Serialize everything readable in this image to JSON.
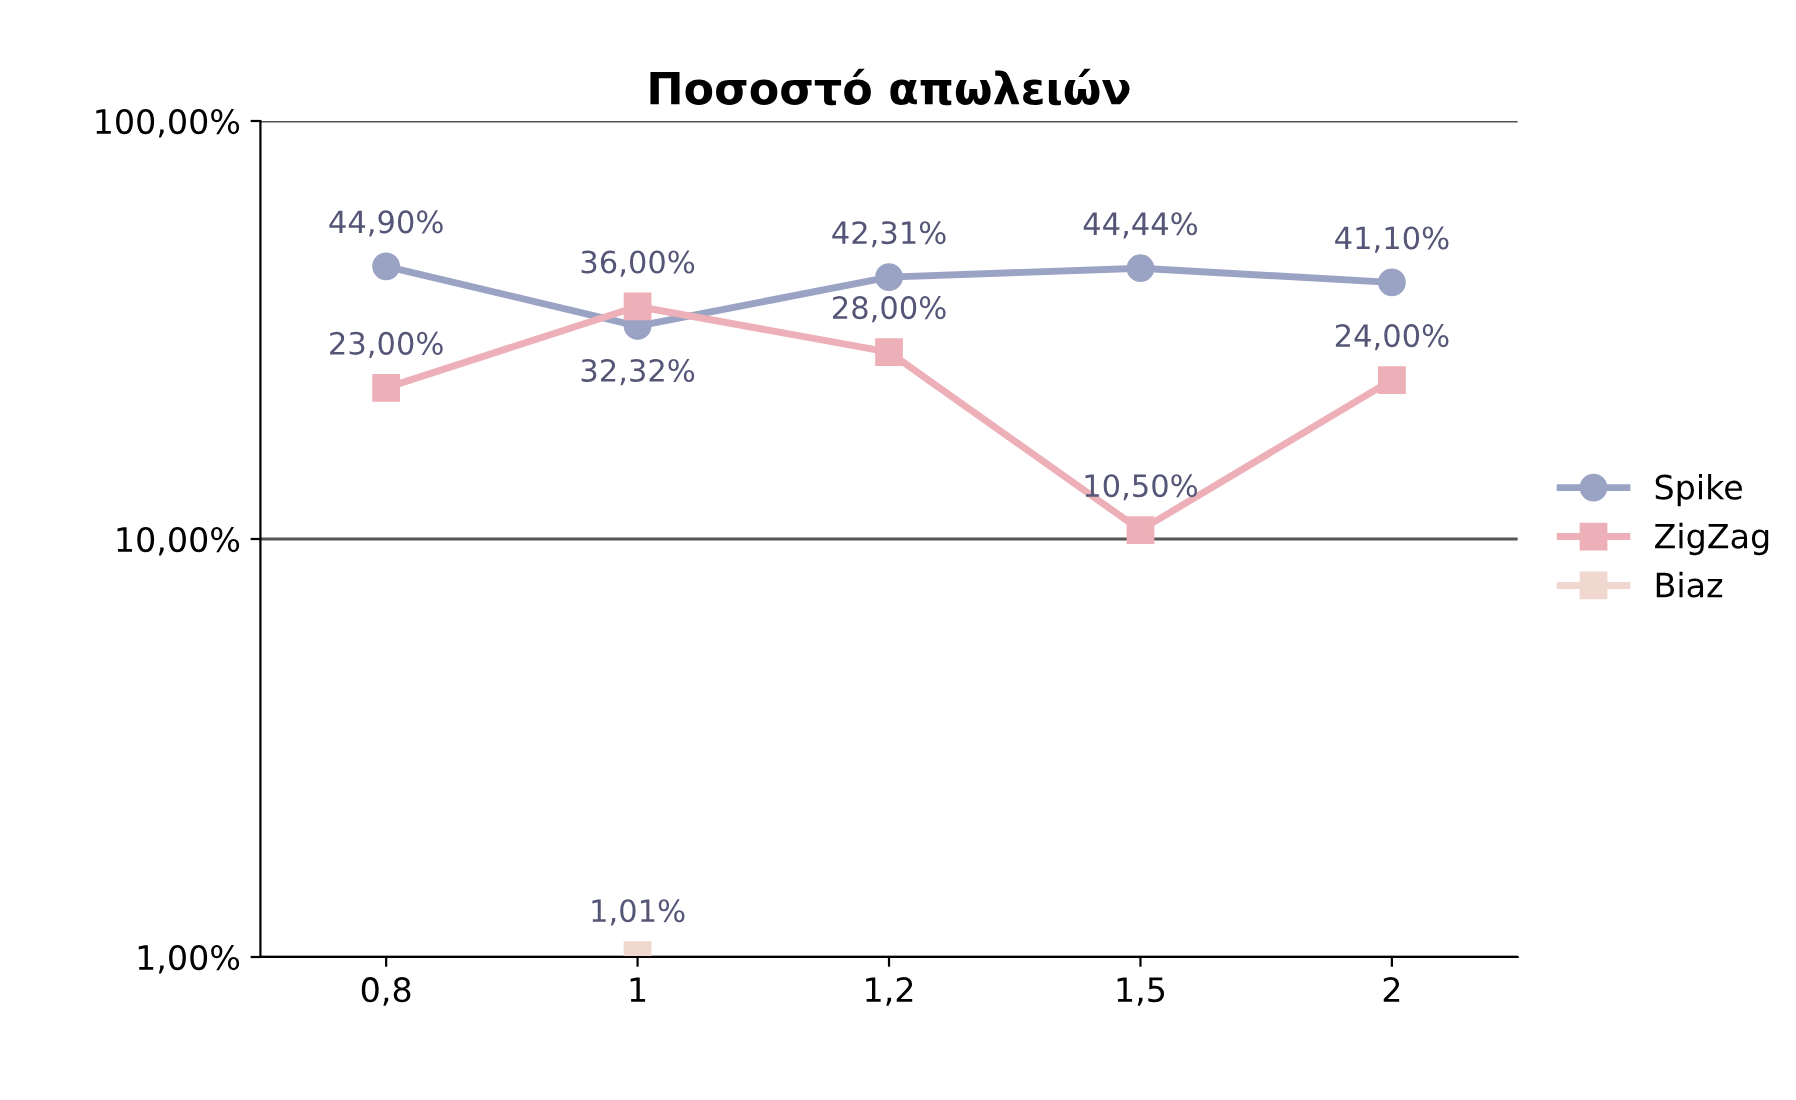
{
  "chart_data": {
    "type": "line",
    "title": "Ποσοστό απωλειών",
    "categories": [
      "0,8",
      "1",
      "1,2",
      "1,5",
      "2"
    ],
    "series": [
      {
        "name": "Spike",
        "color": "#9aa3c4",
        "marker": "circle",
        "values": [
          44.9,
          32.32,
          42.31,
          44.44,
          41.1
        ],
        "value_labels": [
          "44,90%",
          "32,32%",
          "42,31%",
          "44,44%",
          "41,10%"
        ]
      },
      {
        "name": "ZigZag",
        "color": "#eeb0b8",
        "marker": "square",
        "values": [
          23,
          36,
          28,
          10.5,
          24
        ],
        "value_labels": [
          "23,00%",
          "36,00%",
          "28,00%",
          "10,50%",
          "24,00%"
        ]
      },
      {
        "name": "Biaz",
        "color": "#f0d8d0",
        "marker": "square",
        "values": [
          null,
          1.01,
          null,
          null,
          null
        ],
        "value_labels": [
          null,
          "1,01%",
          null,
          null,
          null
        ]
      }
    ],
    "log": "y",
    "ylim": [
      1,
      100
    ],
    "yticks": [
      {
        "value": 1,
        "label": "1,00%"
      },
      {
        "value": 10,
        "label": "10,00%"
      },
      {
        "value": 100,
        "label": "100,00%"
      }
    ],
    "grid": "y",
    "legend": "right"
  }
}
